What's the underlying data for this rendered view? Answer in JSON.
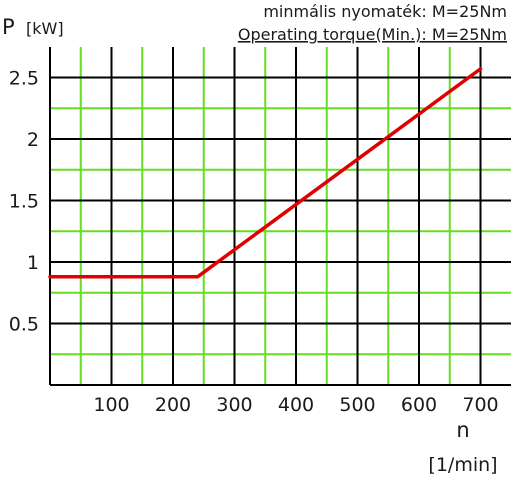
{
  "chart_data": {
    "type": "line",
    "title": "minmális nyomaték: M=25Nm",
    "subtitle": "Operating torque(Min.): M=25Nm",
    "ylabel": "P",
    "ylabel_unit": "[kW]",
    "xlabel": "n",
    "xlabel_unit": "[1/min]",
    "xlim": [
      0,
      700
    ],
    "ylim": [
      0,
      2.5
    ],
    "x_ticks": [
      100,
      200,
      300,
      400,
      500,
      600,
      700
    ],
    "x_tick_labels": [
      "100",
      "200",
      "300",
      "400",
      "500",
      "600",
      "700"
    ],
    "y_ticks": [
      0.5,
      1,
      1.5,
      2,
      2.5
    ],
    "y_tick_labels": [
      "0.5",
      "1",
      "1.5",
      "2",
      "2.5"
    ],
    "grid": true,
    "series": [
      {
        "color": "#e00000",
        "x": [
          0,
          240,
          700
        ],
        "y": [
          0.88,
          0.88,
          2.57
        ]
      }
    ]
  },
  "colors": {
    "major_grid": "#000000",
    "minor_grid": "#66dd22",
    "line": "#e00000",
    "text": "#1a1a1a"
  }
}
